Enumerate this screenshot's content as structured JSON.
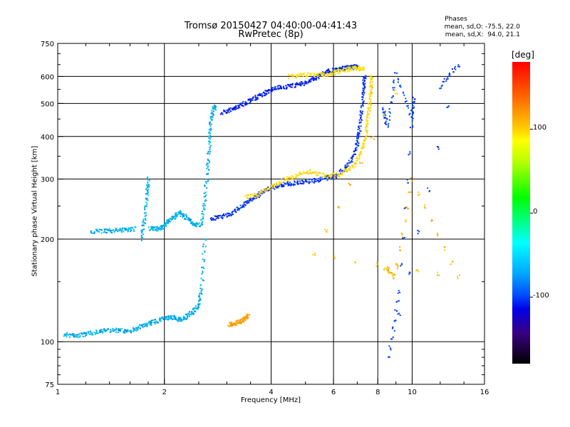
{
  "title_line1": "Tromsø 20150427 04:40:00-04:41:43",
  "title_line2": "RwPretec (8p)",
  "phase_info": {
    "title": "Phases",
    "line1": "mean, sd,O: -75.5, 22.0",
    "line2": "mean, sd,X:  94.0, 21.1"
  },
  "colorbar": {
    "label": "[deg]",
    "ticks": [
      "100",
      "0",
      "-100"
    ],
    "tick_values": [
      100,
      0,
      -100
    ],
    "range": [
      -180,
      180
    ]
  },
  "chart_data": {
    "type": "scatter",
    "xlabel": "Frequency [MHz]",
    "ylabel": "Stationary phase Virtual Height [km]",
    "xscale": "log",
    "yscale": "log",
    "xlim": [
      1,
      16
    ],
    "ylim": [
      75,
      750
    ],
    "x_ticks": [
      1,
      2,
      4,
      6,
      8,
      10,
      16
    ],
    "x_tick_labels": [
      "1",
      "2",
      "4",
      "6",
      "8",
      "10",
      "16"
    ],
    "y_ticks": [
      75,
      100,
      200,
      300,
      400,
      500,
      600,
      750
    ],
    "y_tick_labels": [
      "75",
      "100",
      "200",
      "300",
      "400",
      "500",
      "600",
      "750"
    ],
    "x_grid": [
      2,
      4,
      6,
      8,
      10
    ],
    "y_grid": [
      100,
      200,
      300,
      400,
      500,
      600
    ],
    "grid": true,
    "traces": [
      {
        "phase": -65,
        "points": [
          [
            1.05,
            105
          ],
          [
            1.12,
            104
          ],
          [
            1.2,
            105
          ],
          [
            1.3,
            107
          ],
          [
            1.4,
            108
          ],
          [
            1.5,
            108
          ],
          [
            1.6,
            107
          ],
          [
            1.7,
            110
          ],
          [
            1.8,
            113
          ],
          [
            1.9,
            115
          ],
          [
            2.0,
            117
          ],
          [
            2.1,
            118
          ],
          [
            2.2,
            116
          ],
          [
            2.3,
            118
          ],
          [
            2.4,
            122
          ],
          [
            2.5,
            128
          ],
          [
            2.55,
            145
          ],
          [
            2.6,
            200
          ]
        ]
      },
      {
        "phase": -65,
        "points": [
          [
            1.25,
            210
          ],
          [
            1.35,
            211
          ],
          [
            1.45,
            212
          ],
          [
            1.55,
            213
          ],
          [
            1.65,
            214
          ]
        ]
      },
      {
        "phase": -65,
        "points": [
          [
            1.72,
            200
          ],
          [
            1.76,
            230
          ],
          [
            1.79,
            270
          ],
          [
            1.8,
            300
          ]
        ]
      },
      {
        "phase": -65,
        "points": [
          [
            1.82,
            215
          ],
          [
            1.9,
            214
          ],
          [
            1.98,
            216
          ],
          [
            2.05,
            225
          ],
          [
            2.12,
            230
          ],
          [
            2.2,
            240
          ],
          [
            2.3,
            232
          ],
          [
            2.4,
            223
          ],
          [
            2.5,
            220
          ]
        ]
      },
      {
        "phase": -65,
        "points": [
          [
            2.55,
            220
          ],
          [
            2.6,
            260
          ],
          [
            2.65,
            320
          ],
          [
            2.68,
            380
          ],
          [
            2.7,
            440
          ],
          [
            2.75,
            480
          ],
          [
            2.8,
            490
          ]
        ]
      },
      {
        "phase": -95,
        "points": [
          [
            2.7,
            230
          ],
          [
            2.9,
            232
          ],
          [
            3.1,
            238
          ],
          [
            3.3,
            250
          ],
          [
            3.5,
            260
          ],
          [
            3.7,
            270
          ],
          [
            3.9,
            280
          ],
          [
            4.2,
            288
          ],
          [
            4.5,
            290
          ],
          [
            4.8,
            293
          ],
          [
            5.2,
            296
          ],
          [
            5.6,
            300
          ],
          [
            6.0,
            305
          ],
          [
            6.4,
            318
          ],
          [
            6.8,
            345
          ],
          [
            7.0,
            380
          ],
          [
            7.1,
            420
          ],
          [
            7.2,
            480
          ],
          [
            7.3,
            550
          ],
          [
            7.35,
            600
          ]
        ]
      },
      {
        "phase": 100,
        "points": [
          [
            3.4,
            265
          ],
          [
            3.7,
            270
          ],
          [
            4.0,
            285
          ],
          [
            4.4,
            300
          ],
          [
            4.8,
            310
          ],
          [
            5.2,
            315
          ],
          [
            5.8,
            305
          ],
          [
            6.3,
            310
          ],
          [
            6.8,
            325
          ],
          [
            7.2,
            360
          ],
          [
            7.4,
            400
          ],
          [
            7.5,
            450
          ],
          [
            7.6,
            500
          ],
          [
            7.65,
            550
          ],
          [
            7.7,
            600
          ]
        ]
      },
      {
        "phase": -100,
        "points": [
          [
            2.9,
            470
          ],
          [
            3.1,
            480
          ],
          [
            3.3,
            495
          ],
          [
            3.5,
            510
          ],
          [
            3.7,
            525
          ],
          [
            3.9,
            540
          ],
          [
            4.1,
            555
          ],
          [
            4.4,
            560
          ],
          [
            4.7,
            565
          ],
          [
            5.0,
            575
          ],
          [
            5.3,
            590
          ],
          [
            5.6,
            610
          ],
          [
            5.9,
            625
          ],
          [
            6.2,
            630
          ],
          [
            6.5,
            635
          ],
          [
            6.8,
            640
          ],
          [
            7.0,
            640
          ]
        ]
      },
      {
        "phase": 95,
        "points": [
          [
            4.5,
            600
          ],
          [
            4.9,
            605
          ],
          [
            5.4,
            605
          ],
          [
            5.8,
            610
          ],
          [
            6.2,
            620
          ],
          [
            6.6,
            630
          ],
          [
            7.0,
            635
          ],
          [
            7.3,
            630
          ]
        ]
      },
      {
        "phase": 120,
        "points": [
          [
            3.05,
            112
          ],
          [
            3.15,
            113
          ],
          [
            3.25,
            114
          ],
          [
            3.35,
            116
          ],
          [
            3.45,
            120
          ]
        ]
      },
      {
        "phase": -90,
        "points": [
          [
            8.3,
            480
          ],
          [
            8.5,
            430
          ],
          [
            9.0,
            610
          ],
          [
            10.0,
            450
          ],
          [
            10.1,
            520
          ],
          [
            9.2,
            140
          ],
          [
            8.6,
            90
          ],
          [
            13.5,
            650
          ],
          [
            12.0,
            560
          ]
        ]
      },
      {
        "phase": 110,
        "points": [
          [
            8.4,
            165
          ],
          [
            8.9,
            155
          ],
          [
            10.0,
            300
          ],
          [
            13.5,
            155
          ],
          [
            5.3,
            180
          ],
          [
            9.0,
            540
          ]
        ]
      }
    ]
  }
}
